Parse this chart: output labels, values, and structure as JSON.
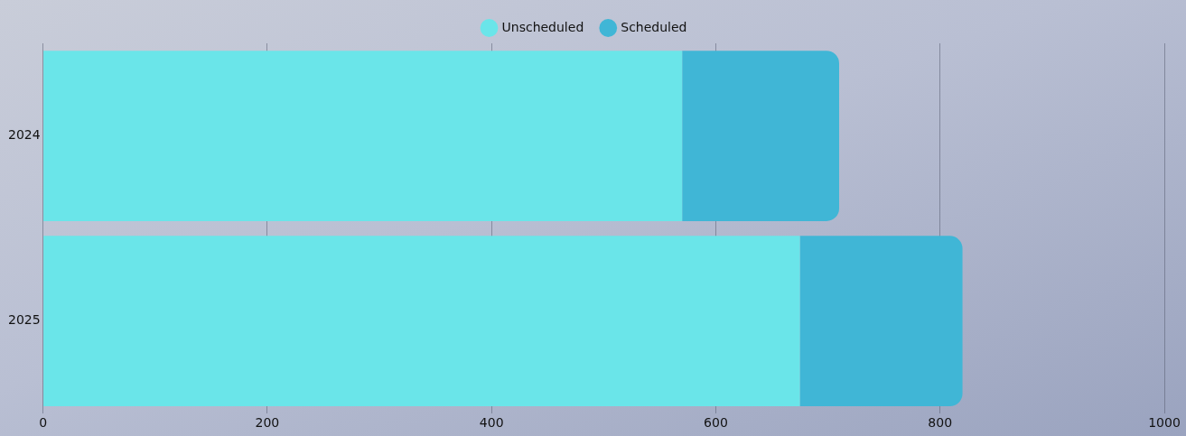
{
  "chart_data": {
    "type": "bar",
    "orientation": "horizontal",
    "stacked": true,
    "categories": [
      "2024",
      "2025"
    ],
    "series": [
      {
        "name": "Unscheduled",
        "color": "#6ae5e9",
        "values": [
          570,
          675
        ]
      },
      {
        "name": "Scheduled",
        "color": "#40b6d6",
        "values": [
          140,
          145
        ]
      }
    ],
    "xlim": [
      0,
      1000
    ],
    "xticks": [
      0,
      200,
      400,
      600,
      800,
      1000
    ],
    "grid": "x",
    "legend": "top"
  }
}
